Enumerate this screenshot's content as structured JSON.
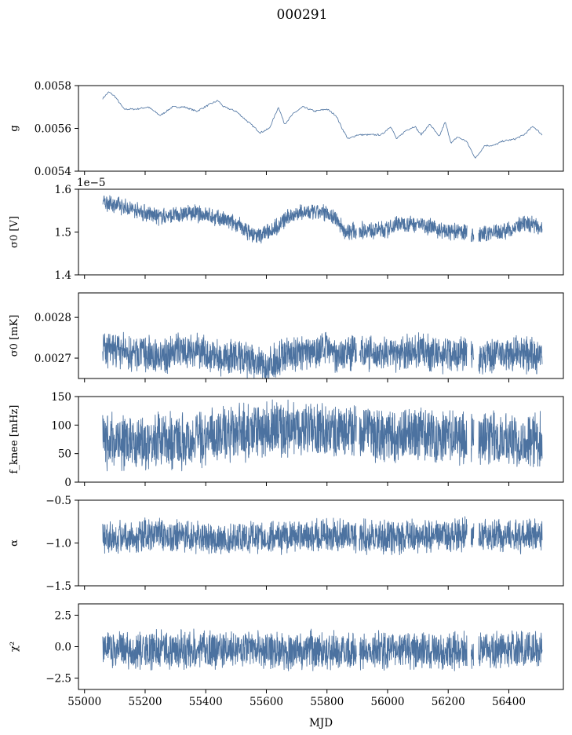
{
  "figure_title": "000291",
  "x_label": "MJD",
  "colors": {
    "series": "#4c72a0"
  },
  "chart_data": {
    "type": "line",
    "x_range": [
      54980,
      56580
    ],
    "x_ticks": [
      55000,
      55200,
      55400,
      55600,
      55800,
      56000,
      56200,
      56400
    ],
    "x_tick_labels": [
      "55000",
      "55200",
      "55400",
      "55600",
      "55800",
      "56000",
      "56200",
      "56400"
    ],
    "panels": [
      {
        "key": "g",
        "ylabel": "g",
        "offset_text": "",
        "ylim": [
          0.0054,
          0.0058
        ],
        "y_ticks": [
          0.0054,
          0.0056,
          0.0058
        ],
        "y_tick_labels": [
          "0.0054",
          "0.0056",
          "0.0058"
        ],
        "band": 0,
        "x": [
          55060,
          55080,
          55100,
          55130,
          55170,
          55210,
          55250,
          55290,
          55330,
          55370,
          55410,
          55440,
          55460,
          55500,
          55540,
          55580,
          55610,
          55640,
          55660,
          55690,
          55720,
          55760,
          55800,
          55830,
          55850,
          55870,
          55900,
          55940,
          55980,
          56010,
          56030,
          56060,
          56090,
          56110,
          56140,
          56170,
          56190,
          56210,
          56230,
          56260,
          56290,
          56320,
          56350,
          56380,
          56420,
          56450,
          56480,
          56510
        ],
        "values": [
          0.00574,
          0.00577,
          0.00575,
          0.00569,
          0.00569,
          0.0057,
          0.00566,
          0.0057,
          0.0057,
          0.00568,
          0.00571,
          0.00573,
          0.0057,
          0.00568,
          0.00563,
          0.00558,
          0.0056,
          0.0057,
          0.00562,
          0.00567,
          0.0057,
          0.00568,
          0.00569,
          0.00566,
          0.0056,
          0.00555,
          0.00557,
          0.00557,
          0.00557,
          0.00561,
          0.00555,
          0.00559,
          0.00561,
          0.00557,
          0.00562,
          0.00556,
          0.00563,
          0.00553,
          0.00556,
          0.00554,
          0.00546,
          0.00552,
          0.00552,
          0.00554,
          0.00555,
          0.00557,
          0.00561,
          0.00557
        ]
      },
      {
        "key": "sigma0_v",
        "ylabel": "σ0 [V]",
        "offset_text": "1e−5",
        "ylim": [
          1.4,
          1.6
        ],
        "y_ticks": [
          1.4,
          1.5,
          1.6
        ],
        "y_tick_labels": [
          "1.4",
          "1.5",
          "1.6"
        ],
        "band": 0.022,
        "x": [
          55060,
          55100,
          55150,
          55200,
          55250,
          55300,
          55350,
          55400,
          55450,
          55500,
          55540,
          55570,
          55600,
          55640,
          55680,
          55720,
          55760,
          55800,
          55830,
          55860,
          55900,
          55950,
          56000,
          56030,
          56060,
          56100,
          56130,
          56170,
          56200,
          56230,
          56260,
          56290,
          56300,
          56340,
          56370,
          56400,
          56440,
          56480,
          56510
        ],
        "values": [
          1.57,
          1.565,
          1.555,
          1.545,
          1.535,
          1.54,
          1.545,
          1.54,
          1.53,
          1.52,
          1.5,
          1.49,
          1.5,
          1.515,
          1.54,
          1.545,
          1.545,
          1.545,
          1.53,
          1.5,
          1.505,
          1.505,
          1.505,
          1.52,
          1.52,
          1.52,
          1.515,
          1.505,
          1.5,
          1.5,
          1.5,
          1.49,
          1.49,
          1.5,
          1.5,
          1.505,
          1.515,
          1.52,
          1.51
        ]
      },
      {
        "key": "sigma0_mk",
        "ylabel": "σ0 [mK]",
        "offset_text": "",
        "ylim": [
          0.00265,
          0.00286
        ],
        "y_ticks": [
          0.0027,
          0.0028
        ],
        "y_tick_labels": [
          "0.0027",
          "0.0028"
        ],
        "band": 5e-05,
        "x": [
          55060,
          55100,
          55150,
          55200,
          55250,
          55300,
          55350,
          55400,
          55450,
          55500,
          55550,
          55600,
          55620,
          55660,
          55700,
          55750,
          55800,
          55850,
          55900,
          55950,
          56000,
          56050,
          56100,
          56150,
          56200,
          56230,
          56260,
          56300,
          56350,
          56400,
          56450,
          56510
        ],
        "values": [
          0.00272,
          0.00272,
          0.00271,
          0.00271,
          0.0027,
          0.00272,
          0.00272,
          0.00271,
          0.0027,
          0.0027,
          0.00269,
          0.00268,
          0.00269,
          0.00271,
          0.00271,
          0.00272,
          0.00272,
          0.00271,
          0.00272,
          0.00271,
          0.00271,
          0.00271,
          0.00272,
          0.00271,
          0.00271,
          0.00271,
          0.00272,
          0.0027,
          0.00271,
          0.00271,
          0.00271,
          0.0027
        ]
      },
      {
        "key": "fknee",
        "ylabel": "f_knee [mHz]",
        "offset_text": "",
        "ylim": [
          0,
          150
        ],
        "y_ticks": [
          0,
          50,
          100,
          150
        ],
        "y_tick_labels": [
          "0",
          "50",
          "100",
          "150"
        ],
        "band": 55,
        "x": [
          55060,
          55150,
          55250,
          55350,
          55420,
          55500,
          55580,
          55620,
          55700,
          55800,
          55900,
          55950,
          56050,
          56150,
          56250,
          56300,
          56350,
          56450,
          56510
        ],
        "values": [
          72,
          72,
          73,
          74,
          82,
          85,
          88,
          92,
          92,
          90,
          86,
          82,
          84,
          82,
          78,
          76,
          76,
          76,
          76
        ]
      },
      {
        "key": "alpha",
        "ylabel": "α",
        "offset_text": "",
        "ylim": [
          -1.5,
          -0.5
        ],
        "y_ticks": [
          -1.5,
          -1.0,
          -0.5
        ],
        "y_tick_labels": [
          "−1.5",
          "−1.0",
          "−0.5"
        ],
        "band": 0.22,
        "x": [
          55060,
          55150,
          55250,
          55350,
          55450,
          55550,
          55650,
          55750,
          55850,
          55950,
          56050,
          56150,
          56250,
          56350,
          56450,
          56510
        ],
        "values": [
          -0.92,
          -0.92,
          -0.92,
          -0.93,
          -0.96,
          -0.93,
          -0.92,
          -0.91,
          -0.91,
          -0.93,
          -0.93,
          -0.92,
          -0.9,
          -0.92,
          -0.92,
          -0.92
        ]
      },
      {
        "key": "chi2",
        "ylabel": "χ²",
        "offset_text": "",
        "ylim": [
          -3.4,
          3.4
        ],
        "y_ticks": [
          -2.5,
          0.0,
          2.5
        ],
        "y_tick_labels": [
          "−2.5",
          "0.0",
          "2.5"
        ],
        "band": 1.7,
        "x": [
          55060,
          55200,
          55400,
          55600,
          55800,
          56000,
          56200,
          56400,
          56510
        ],
        "values": [
          -0.3,
          -0.3,
          -0.2,
          -0.3,
          -0.3,
          -0.3,
          -0.3,
          -0.3,
          -0.3
        ]
      }
    ],
    "gaps": [
      [
        55897,
        55906
      ],
      [
        56262,
        56275
      ],
      [
        56285,
        56300
      ]
    ]
  }
}
